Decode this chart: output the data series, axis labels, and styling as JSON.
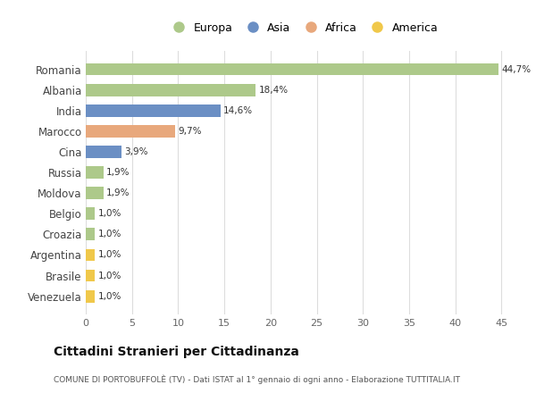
{
  "countries": [
    "Romania",
    "Albania",
    "India",
    "Marocco",
    "Cina",
    "Russia",
    "Moldova",
    "Belgio",
    "Croazia",
    "Argentina",
    "Brasile",
    "Venezuela"
  ],
  "values": [
    44.7,
    18.4,
    14.6,
    9.7,
    3.9,
    1.9,
    1.9,
    1.0,
    1.0,
    1.0,
    1.0,
    1.0
  ],
  "labels": [
    "44,7%",
    "18,4%",
    "14,6%",
    "9,7%",
    "3,9%",
    "1,9%",
    "1,9%",
    "1,0%",
    "1,0%",
    "1,0%",
    "1,0%",
    "1,0%"
  ],
  "continents": [
    "Europa",
    "Europa",
    "Asia",
    "Africa",
    "Asia",
    "Europa",
    "Europa",
    "Europa",
    "Europa",
    "America",
    "America",
    "America"
  ],
  "colors": {
    "Europa": "#adc98a",
    "Asia": "#6b8fc4",
    "Africa": "#e8a87c",
    "America": "#f0c84a"
  },
  "legend_labels": [
    "Europa",
    "Asia",
    "Africa",
    "America"
  ],
  "legend_colors": [
    "#adc98a",
    "#6b8fc4",
    "#e8a87c",
    "#f0c84a"
  ],
  "xlim": [
    0,
    47
  ],
  "xticks": [
    0,
    5,
    10,
    15,
    20,
    25,
    30,
    35,
    40,
    45
  ],
  "title": "Cittadini Stranieri per Cittadinanza",
  "subtitle": "COMUNE DI PORTOBUFFOLÈ (TV) - Dati ISTAT al 1° gennaio di ogni anno - Elaborazione TUTTITALIA.IT",
  "background_color": "#ffffff",
  "grid_color": "#dddddd",
  "bar_alpha": 1.0,
  "bar_height": 0.6
}
